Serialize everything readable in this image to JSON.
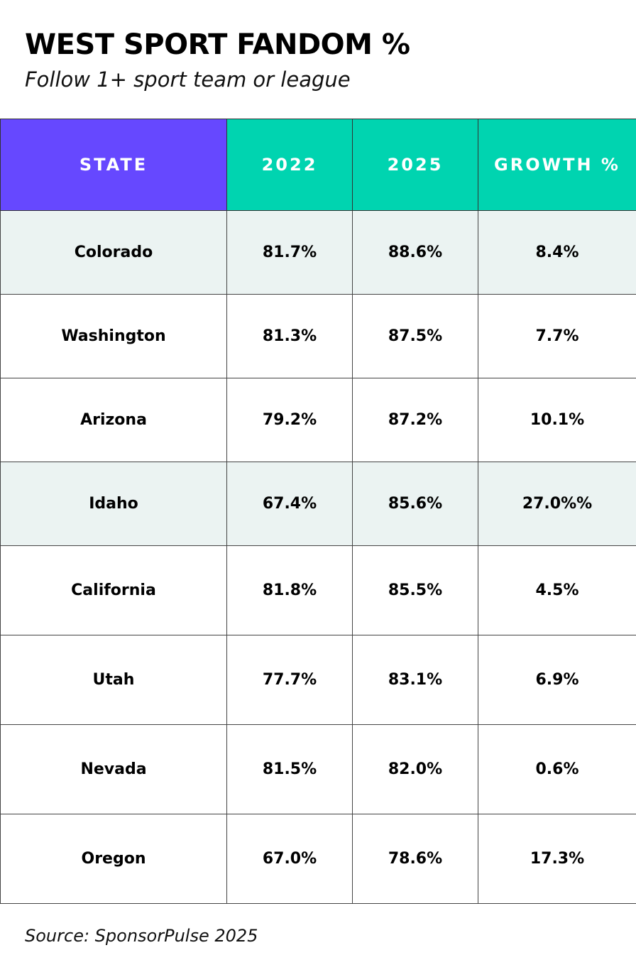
{
  "header": {
    "title": "WEST SPORT FANDOM %",
    "subtitle": "Follow 1+ sport team or league"
  },
  "table": {
    "columns": [
      "STATE",
      "2022",
      "2025",
      "GROWTH %"
    ],
    "rows": [
      [
        "Colorado",
        "81.7%",
        "88.6%",
        "8.4%"
      ],
      [
        "Washington",
        "81.3%",
        "87.5%",
        "7.7%"
      ],
      [
        "Arizona",
        "79.2%",
        "87.2%",
        "10.1%"
      ],
      [
        "Idaho",
        "67.4%",
        "85.6%",
        "27.0%%"
      ],
      [
        "California",
        "81.8%",
        "85.5%",
        "4.5%"
      ],
      [
        "Utah",
        "77.7%",
        "83.1%",
        "6.9%"
      ],
      [
        "Nevada",
        "81.5%",
        "82.0%",
        "0.6%"
      ],
      [
        "Oregon",
        "67.0%",
        "78.6%",
        "17.3%"
      ]
    ]
  },
  "footer": {
    "source": "Source: SponsorPulse 2025"
  }
}
